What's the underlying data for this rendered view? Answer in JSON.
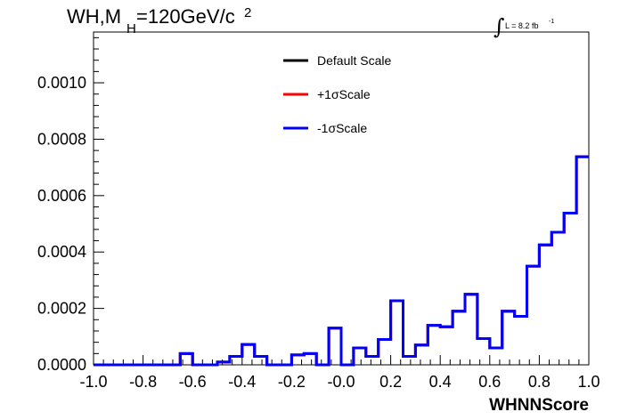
{
  "title": {
    "main": "WH,M",
    "subscript": "H",
    "rest": "=120GeV/c",
    "superscript": "2"
  },
  "luminosity": {
    "symbol": "∫",
    "text": "L = 8.2 fb",
    "superscript": "-1"
  },
  "chart_data": {
    "type": "line",
    "histogram": true,
    "xlabel": "WHNNScore",
    "ylabel": "",
    "xlim": [
      -1.0,
      1.0
    ],
    "ylim": [
      0.0,
      0.00118
    ],
    "x_ticks": [
      "-1.0",
      "-0.8",
      "-0.6",
      "-0.4",
      "-0.2",
      "-0.0",
      "0.2",
      "0.4",
      "0.6",
      "0.8",
      "1.0"
    ],
    "y_ticks": [
      "0.0000",
      "0.0002",
      "0.0004",
      "0.0006",
      "0.0008",
      "0.0010"
    ],
    "bin_edges": [
      -1.0,
      -0.95,
      -0.9,
      -0.85,
      -0.8,
      -0.75,
      -0.7,
      -0.65,
      -0.6,
      -0.55,
      -0.5,
      -0.45,
      -0.4,
      -0.35,
      -0.3,
      -0.25,
      -0.2,
      -0.15,
      -0.1,
      -0.05,
      0.0,
      0.05,
      0.1,
      0.15,
      0.2,
      0.25,
      0.3,
      0.35,
      0.4,
      0.45,
      0.5,
      0.55,
      0.6,
      0.65,
      0.7,
      0.75,
      0.8,
      0.85,
      0.9,
      0.95,
      1.0
    ],
    "legend_position": "top-center",
    "series": [
      {
        "name": "Default Scale",
        "color": "#000000",
        "values": [
          0,
          0,
          0,
          0,
          0,
          0,
          0,
          4e-05,
          0,
          0,
          1e-05,
          3e-05,
          7.2e-05,
          3e-05,
          0,
          0,
          3.5e-05,
          4e-05,
          0,
          0.00013,
          0,
          6e-05,
          3e-05,
          9e-05,
          0.000227,
          3e-05,
          7e-05,
          0.00014,
          0.000135,
          0.00019,
          0.00025,
          9.3e-05,
          6e-05,
          0.00019,
          0.000172,
          0.00035,
          0.000425,
          0.00047,
          0.000538,
          0.000738
        ]
      },
      {
        "name": "+1σScale",
        "color": "#ff0000",
        "values": [
          0,
          0,
          0,
          0,
          0,
          0,
          0,
          4e-05,
          0,
          0,
          1e-05,
          3e-05,
          7.2e-05,
          3e-05,
          0,
          0,
          3.5e-05,
          4e-05,
          0,
          0.00013,
          0,
          6e-05,
          3e-05,
          9e-05,
          0.000227,
          3e-05,
          7e-05,
          0.00014,
          0.000135,
          0.00019,
          0.00025,
          9.3e-05,
          6e-05,
          0.00019,
          0.000172,
          0.00035,
          0.000425,
          0.00047,
          0.000538,
          0.000738
        ]
      },
      {
        "name": "-1σScale",
        "color": "#0000ff",
        "values": [
          0,
          0,
          0,
          0,
          0,
          0,
          0,
          4e-05,
          0,
          0,
          1e-05,
          3e-05,
          7.2e-05,
          3e-05,
          0,
          0,
          3.5e-05,
          4e-05,
          0,
          0.00013,
          0,
          6e-05,
          3e-05,
          9e-05,
          0.000227,
          3e-05,
          7e-05,
          0.00014,
          0.000135,
          0.00019,
          0.00025,
          9.3e-05,
          6e-05,
          0.00019,
          0.000172,
          0.00035,
          0.000425,
          0.00047,
          0.000538,
          0.000738
        ]
      }
    ]
  }
}
